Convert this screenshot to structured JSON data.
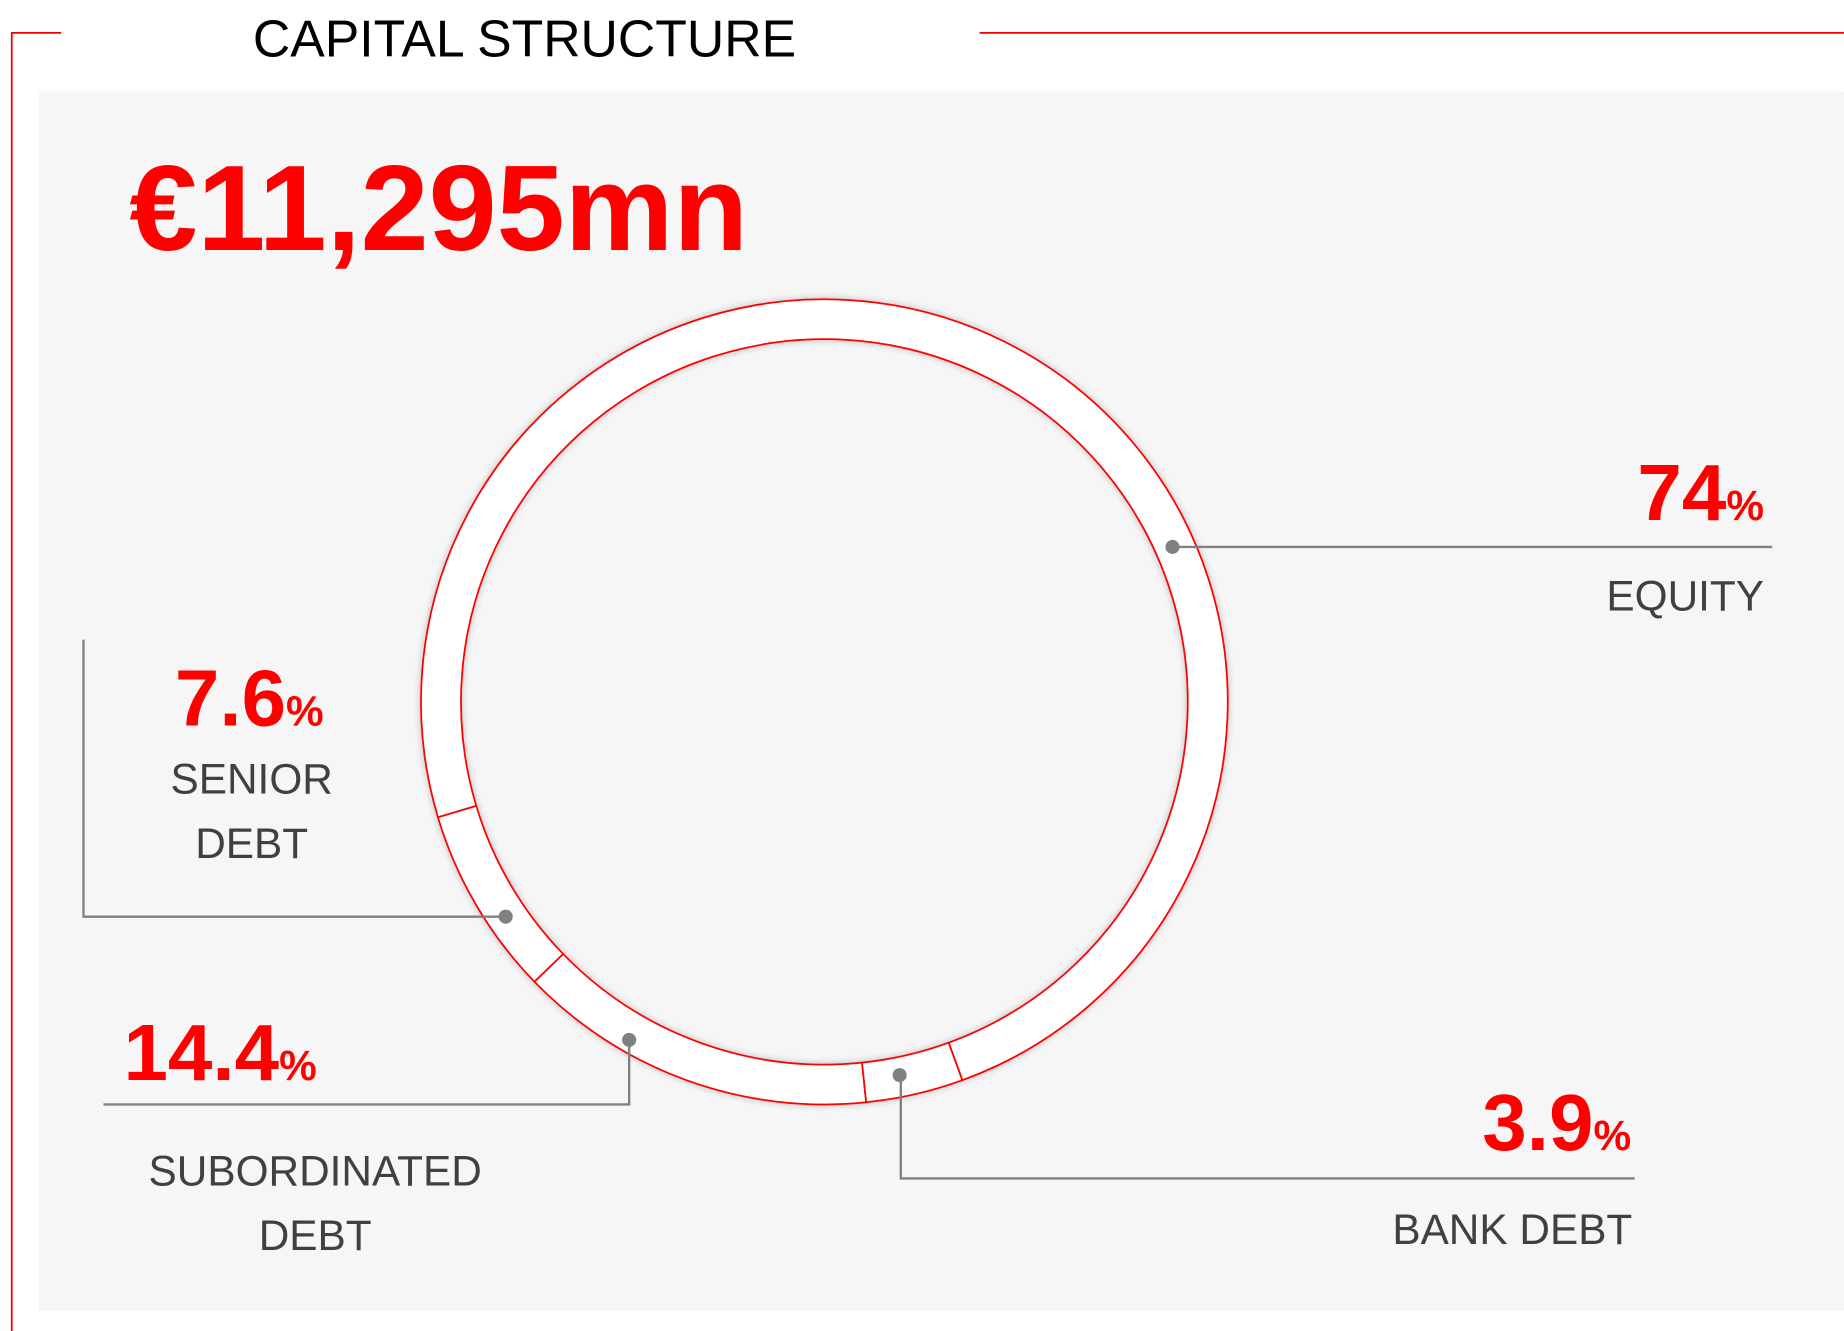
{
  "chart_data": {
    "type": "donut",
    "title": "CAPITAL STRUCTURE",
    "total": "€11,295mn",
    "categories": [
      "EQUITY",
      "SENIOR DEBT",
      "SUBORDINATED DEBT",
      "BANK DEBT"
    ],
    "values": [
      74,
      7.6,
      14.4,
      3.9
    ],
    "unit": "%",
    "color": "#ff0000"
  }
}
